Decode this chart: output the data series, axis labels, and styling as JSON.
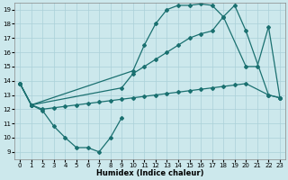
{
  "bg_color": "#cce8ec",
  "grid_color": "#aad0d8",
  "line_color": "#1a7070",
  "xlabel": "Humidex (Indice chaleur)",
  "xlim": [
    -0.5,
    23.5
  ],
  "ylim": [
    8.5,
    19.5
  ],
  "xticks": [
    0,
    1,
    2,
    3,
    4,
    5,
    6,
    7,
    8,
    9,
    10,
    11,
    12,
    13,
    14,
    15,
    16,
    17,
    18,
    19,
    20,
    21,
    22,
    23
  ],
  "yticks": [
    9,
    10,
    11,
    12,
    13,
    14,
    15,
    16,
    17,
    18,
    19
  ],
  "curve1_x": [
    0,
    1,
    2,
    3,
    4,
    5,
    6,
    7,
    8,
    9
  ],
  "curve1_y": [
    13.8,
    12.3,
    11.9,
    10.8,
    10.0,
    9.3,
    9.3,
    9.0,
    10.0,
    11.4
  ],
  "curve2_x": [
    0,
    1,
    2,
    3,
    4,
    5,
    6,
    7,
    8,
    9,
    10,
    11,
    12,
    13,
    14,
    15,
    16,
    17,
    18,
    19,
    20,
    22,
    23
  ],
  "curve2_y": [
    13.8,
    12.3,
    12.0,
    12.1,
    12.2,
    12.3,
    12.4,
    12.5,
    12.6,
    12.7,
    12.8,
    12.9,
    13.0,
    13.1,
    13.2,
    13.3,
    13.4,
    13.5,
    13.6,
    13.7,
    13.8,
    13.0,
    12.8
  ],
  "curve3_x": [
    0,
    1,
    10,
    11,
    12,
    13,
    14,
    15,
    16,
    17,
    18,
    20,
    21,
    22,
    23
  ],
  "curve3_y": [
    13.8,
    12.3,
    14.7,
    16.5,
    18.0,
    19.0,
    19.3,
    19.3,
    19.4,
    19.3,
    18.5,
    15.0,
    15.0,
    17.8,
    12.8
  ],
  "curve4_x": [
    0,
    1,
    9,
    10,
    11,
    12,
    13,
    14,
    15,
    16,
    17,
    18,
    19,
    20,
    22,
    23
  ],
  "curve4_y": [
    13.8,
    12.3,
    13.5,
    14.5,
    15.0,
    15.5,
    16.0,
    16.5,
    17.0,
    17.3,
    17.5,
    18.5,
    19.3,
    17.5,
    13.0,
    12.8
  ]
}
